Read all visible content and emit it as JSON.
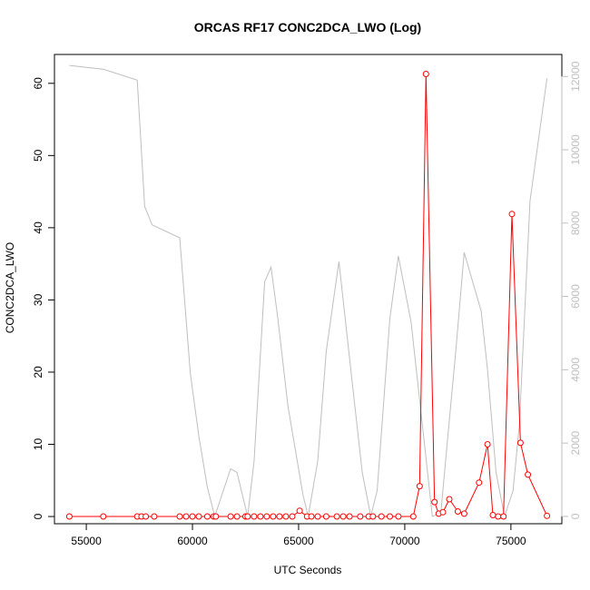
{
  "chart_data": {
    "type": "line",
    "title": "ORCAS RF17 CONC2DCA_LWO (Log)",
    "xlabel": "UTC Seconds",
    "ylabel": "CONC2DCA_LWO",
    "xlim": [
      53500,
      77400
    ],
    "ylim": [
      -1,
      64
    ],
    "y2lim": [
      -200,
      12600
    ],
    "x_ticks": [
      55000,
      60000,
      65000,
      70000,
      75000
    ],
    "y_ticks": [
      0,
      10,
      20,
      30,
      40,
      50,
      60
    ],
    "y2_ticks": [
      0,
      2000,
      4000,
      6000,
      8000,
      10000,
      12000
    ],
    "colors": {
      "primary": "#ff0000",
      "secondary": "#bebebe"
    },
    "series": [
      {
        "axis": "left",
        "marker": "open-circle",
        "x": [
          54200,
          55800,
          57400,
          57600,
          57800,
          58200,
          59400,
          59700,
          60000,
          60300,
          60700,
          61000,
          61100,
          61800,
          62100,
          62500,
          62600,
          62900,
          63200,
          63500,
          63800,
          64100,
          64400,
          64700,
          65050,
          65400,
          65600,
          65900,
          66300,
          66800,
          67100,
          67400,
          67900,
          68300,
          68500,
          68900,
          69300,
          69700,
          70400,
          70700,
          71000,
          71400,
          71600,
          71800,
          72100,
          72500,
          72800,
          73500,
          73900,
          74150,
          74400,
          74650,
          75050,
          75450,
          75800,
          76700
        ],
        "values": [
          0,
          0,
          0,
          0,
          0,
          0,
          0,
          0,
          0,
          0,
          0,
          0,
          0,
          0,
          0,
          0,
          0,
          0,
          0,
          0,
          0,
          0,
          0,
          0,
          0.8,
          0,
          0,
          0,
          0,
          0,
          0,
          0,
          0,
          0,
          0,
          0,
          0,
          0,
          0,
          4.2,
          61.3,
          2,
          0.4,
          0.6,
          2.4,
          0.7,
          0.4,
          4.7,
          10,
          0.2,
          0,
          0,
          41.9,
          10.2,
          5.8,
          0.1
        ]
      },
      {
        "axis": "right",
        "marker": "none",
        "x": [
          54200,
          55800,
          57400,
          57750,
          58100,
          59400,
          59900,
          60300,
          60700,
          61050,
          61800,
          62100,
          62600,
          62900,
          63400,
          63700,
          64000,
          64500,
          65200,
          65450,
          65900,
          66300,
          66900,
          67500,
          68000,
          68400,
          68700,
          69300,
          69700,
          70300,
          70600,
          71000,
          71300,
          71700,
          72000,
          72400,
          72800,
          73600,
          73900,
          74300,
          74700,
          75100,
          75400,
          75900,
          76700
        ],
        "values": [
          12300,
          12200,
          11900,
          8450,
          7950,
          7600,
          3900,
          2200,
          800,
          0,
          1300,
          1200,
          0,
          1500,
          6400,
          6800,
          5500,
          3000,
          600,
          0,
          1500,
          4500,
          6950,
          3800,
          1200,
          0,
          700,
          5400,
          7100,
          5300,
          3700,
          1600,
          0,
          100,
          2000,
          4500,
          7200,
          5600,
          4000,
          1200,
          0,
          700,
          2500,
          8600,
          11950
        ]
      }
    ]
  }
}
